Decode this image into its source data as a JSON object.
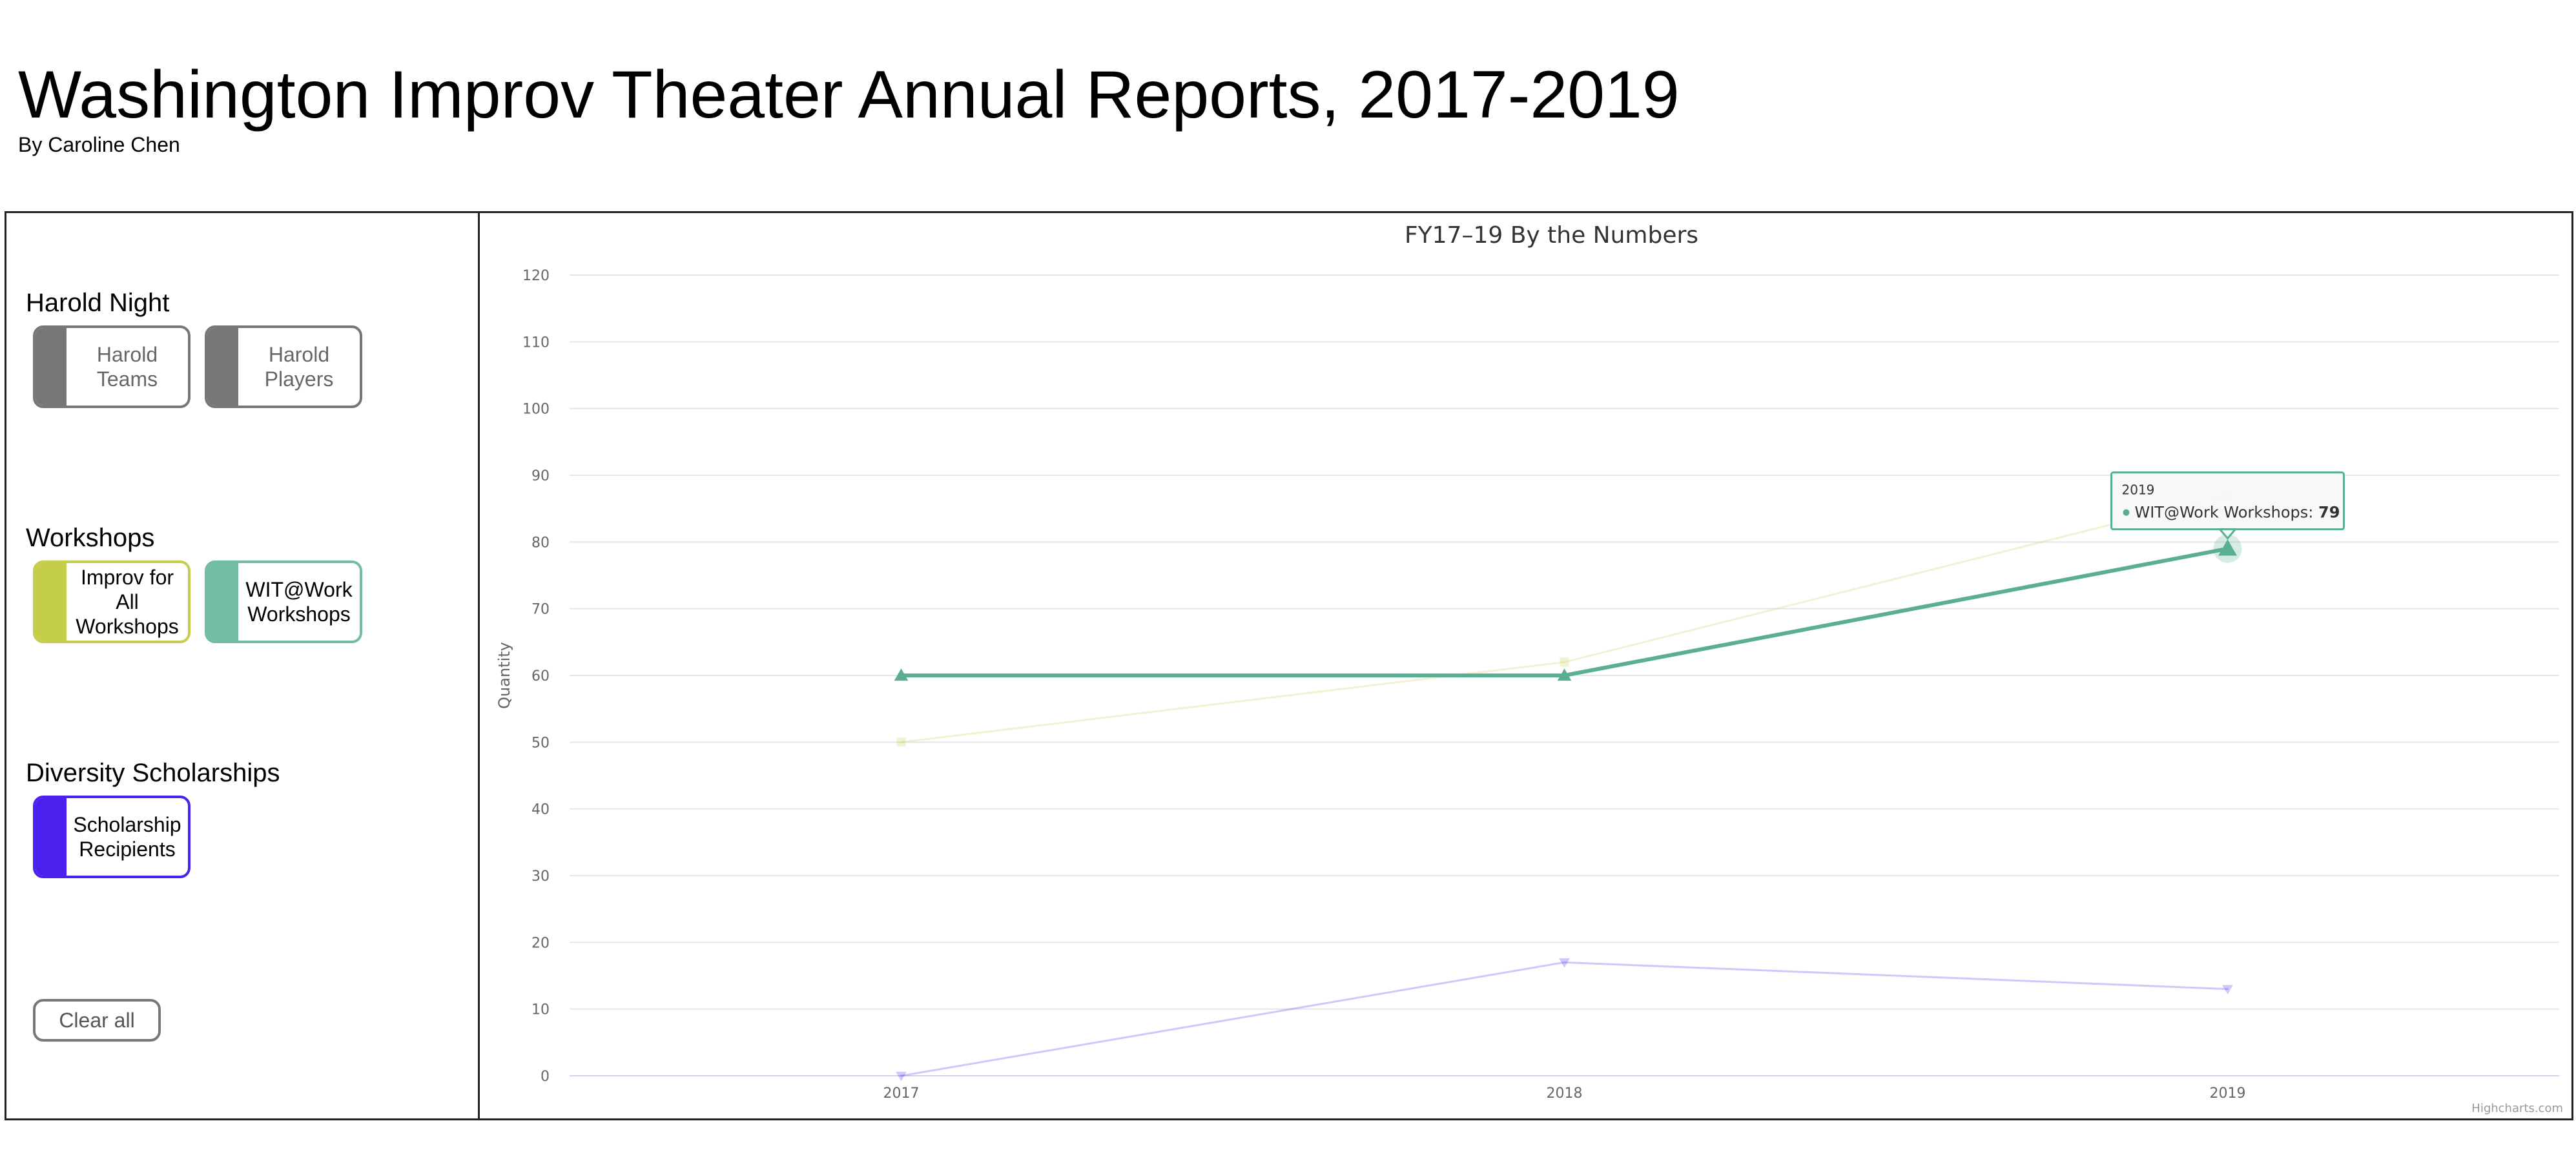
{
  "page": {
    "title": "Washington Improv Theater Annual Reports, 2017-2019",
    "byline": "By Caroline Chen"
  },
  "sidebar": {
    "groups": [
      {
        "title": "Harold Night",
        "toggles": [
          {
            "label": "Harold Teams",
            "color": "#777777",
            "active": false
          },
          {
            "label": "Harold Players",
            "color": "#777777",
            "active": false
          }
        ]
      },
      {
        "title": "Workshops",
        "toggles": [
          {
            "label": "Improv for All Workshops",
            "color": "#c5ce4b",
            "active": true
          },
          {
            "label": "WIT@Work Workshops",
            "color": "#73bca6",
            "active": true
          }
        ]
      },
      {
        "title": "Diversity Scholarships",
        "toggles": [
          {
            "label": "Scholarship Recipients",
            "color": "#4b21f0",
            "active": true
          }
        ]
      }
    ],
    "clear_all_label": "Clear all"
  },
  "chart_data": {
    "type": "line",
    "title": "FY17–19 By the Numbers",
    "xlabel": "",
    "ylabel": "Quantity",
    "categories": [
      "2017",
      "2018",
      "2019"
    ],
    "ylim": [
      0,
      120
    ],
    "yticks": [
      0,
      10,
      20,
      30,
      40,
      50,
      60,
      70,
      80,
      90,
      100,
      110,
      120
    ],
    "grid": true,
    "series": [
      {
        "name": "Improv for All Workshops",
        "values": [
          50,
          62,
          87
        ],
        "color": "#c5ce4b",
        "marker": "square",
        "dimmed": true
      },
      {
        "name": "WIT@Work Workshops",
        "values": [
          60,
          60,
          79
        ],
        "color": "#5aae93",
        "marker": "triangle",
        "dimmed": false
      },
      {
        "name": "Scholarship Recipients",
        "values": [
          0,
          17,
          13
        ],
        "color": "#4b21f0",
        "marker": "triangle-down",
        "dimmed": true
      }
    ],
    "tooltip": {
      "category": "2019",
      "series": "WIT@Work Workshops",
      "value": "79"
    },
    "credits": "Highcharts.com"
  }
}
